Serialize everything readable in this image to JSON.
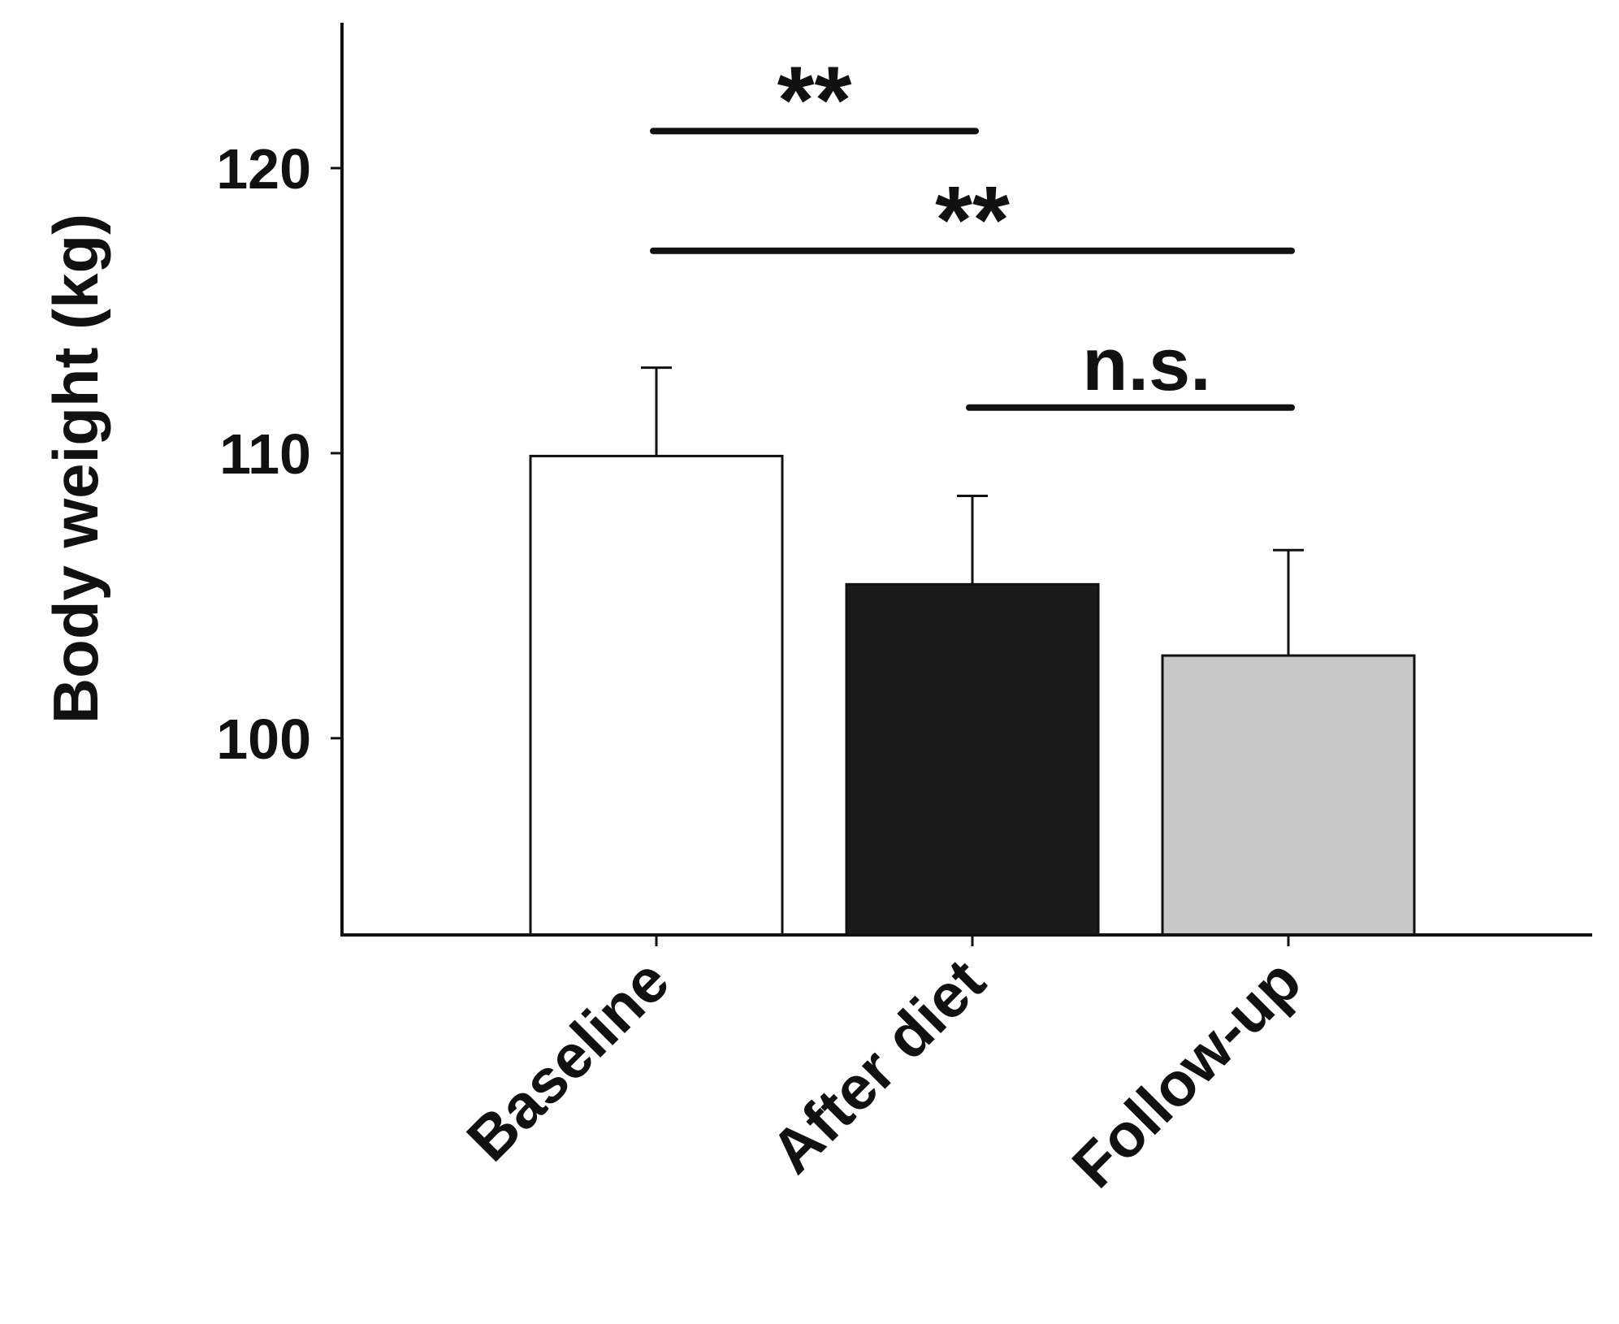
{
  "chart_data": {
    "type": "bar",
    "title": "",
    "xlabel": "",
    "ylabel": "Body weight (kg)",
    "categories": [
      "Baseline",
      "After diet",
      "Follow-up"
    ],
    "values": [
      109.9,
      105.4,
      102.9
    ],
    "error_upper": [
      113.0,
      108.5,
      106.6
    ],
    "colors": [
      "#ffffff",
      "#1a1a1a",
      "#c8c8c8"
    ],
    "bar_edge_color": "#111111",
    "ylim": [
      93.1,
      125.1
    ],
    "yticks": [
      "100",
      "110",
      "120"
    ],
    "grid": false,
    "legend": "none",
    "significance": [
      {
        "from": 0,
        "to": 1,
        "label": "**",
        "y": 121.3
      },
      {
        "from": 0,
        "to": 2,
        "label": "**",
        "y": 117.1
      },
      {
        "from": 1,
        "to": 2,
        "label": "n.s.",
        "y": 111.6
      }
    ]
  }
}
